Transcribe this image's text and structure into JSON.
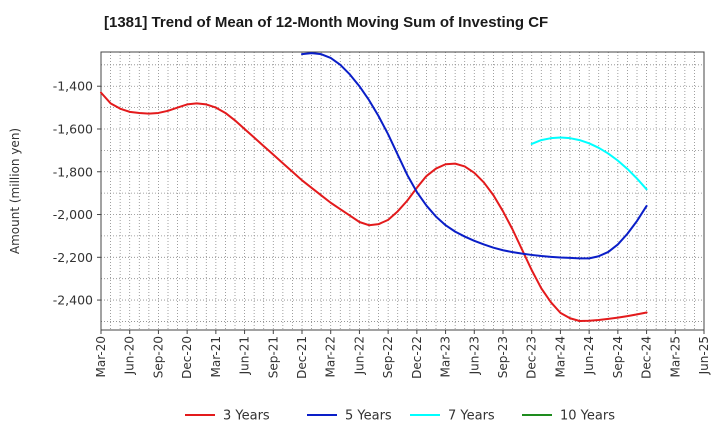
{
  "chart_data": {
    "type": "line",
    "title": "[1381]  Trend of Mean of 12-Month Moving Sum of Investing CF",
    "xlabel": "",
    "ylabel": "Amount (million yen)",
    "ylim": [
      -2540,
      -1240
    ],
    "yticks": [
      -1400,
      -1600,
      -1800,
      -2000,
      -2200,
      -2400
    ],
    "yticklabels": [
      "-1,400",
      "-1,600",
      "-1,800",
      "-2,000",
      "-2,200",
      "-2,400"
    ],
    "grid": true,
    "legend_position": "bottom",
    "x": [
      "Mar-20",
      "Jun-20",
      "Sep-20",
      "Dec-20",
      "Mar-21",
      "Jun-21",
      "Sep-21",
      "Dec-21",
      "Mar-22",
      "Jun-22",
      "Sep-22",
      "Dec-22",
      "Mar-23",
      "Jun-23",
      "Sep-23",
      "Dec-23",
      "Mar-24",
      "Jun-24",
      "Sep-24",
      "Dec-24",
      "Mar-25",
      "Jun-25"
    ],
    "series": [
      {
        "name": "3 Years",
        "color": "#e31a1c",
        "x": [
          "Mar-20",
          "Apr-20",
          "May-20",
          "Jun-20",
          "Jul-20",
          "Aug-20",
          "Sep-20",
          "Oct-20",
          "Nov-20",
          "Dec-20",
          "Jan-21",
          "Feb-21",
          "Mar-21",
          "Apr-21",
          "May-21",
          "Jun-21",
          "Jul-21",
          "Aug-21",
          "Sep-21",
          "Oct-21",
          "Nov-21",
          "Dec-21",
          "Jan-22",
          "Feb-22",
          "Mar-22",
          "Apr-22",
          "May-22",
          "Jun-22",
          "Jul-22",
          "Aug-22",
          "Sep-22",
          "Oct-22",
          "Nov-22",
          "Dec-22",
          "Jan-23",
          "Feb-23",
          "Mar-23",
          "Apr-23",
          "May-23",
          "Jun-23",
          "Jul-23",
          "Aug-23",
          "Sep-23",
          "Oct-23",
          "Nov-23",
          "Dec-23",
          "Jan-24",
          "Feb-24",
          "Mar-24",
          "Apr-24",
          "May-24",
          "Jun-24",
          "Jul-24",
          "Aug-24",
          "Sep-24",
          "Oct-24",
          "Nov-24",
          "Dec-24"
        ],
        "values": [
          -1430,
          -1480,
          -1505,
          -1520,
          -1525,
          -1528,
          -1525,
          -1515,
          -1500,
          -1485,
          -1480,
          -1485,
          -1500,
          -1525,
          -1560,
          -1600,
          -1640,
          -1680,
          -1720,
          -1760,
          -1800,
          -1840,
          -1875,
          -1910,
          -1945,
          -1975,
          -2005,
          -2035,
          -2050,
          -2045,
          -2025,
          -1985,
          -1935,
          -1875,
          -1820,
          -1785,
          -1765,
          -1762,
          -1775,
          -1805,
          -1850,
          -1910,
          -1985,
          -2070,
          -2165,
          -2260,
          -2345,
          -2410,
          -2460,
          -2485,
          -2498,
          -2497,
          -2493,
          -2488,
          -2482,
          -2475,
          -2467,
          -2458
        ]
      },
      {
        "name": "5 Years",
        "color": "#0a1ec8",
        "x": [
          "Dec-21",
          "Jan-22",
          "Feb-22",
          "Mar-22",
          "Apr-22",
          "May-22",
          "Jun-22",
          "Jul-22",
          "Aug-22",
          "Sep-22",
          "Oct-22",
          "Nov-22",
          "Dec-22",
          "Jan-23",
          "Feb-23",
          "Mar-23",
          "Apr-23",
          "May-23",
          "Jun-23",
          "Jul-23",
          "Aug-23",
          "Sep-23",
          "Oct-23",
          "Nov-23",
          "Dec-23",
          "Jan-24",
          "Feb-24",
          "Mar-24",
          "Apr-24",
          "May-24",
          "Jun-24",
          "Jul-24",
          "Aug-24",
          "Sep-24",
          "Oct-24",
          "Nov-24",
          "Dec-24"
        ],
        "values": [
          -1250,
          -1245,
          -1250,
          -1268,
          -1300,
          -1345,
          -1400,
          -1465,
          -1540,
          -1625,
          -1720,
          -1815,
          -1895,
          -1958,
          -2010,
          -2050,
          -2080,
          -2103,
          -2123,
          -2140,
          -2155,
          -2167,
          -2176,
          -2183,
          -2189,
          -2194,
          -2198,
          -2201,
          -2203,
          -2205,
          -2205,
          -2195,
          -2175,
          -2140,
          -2090,
          -2030,
          -1960
        ]
      },
      {
        "name": "7 Years",
        "color": "#00ffff",
        "x": [
          "Dec-23",
          "Jan-24",
          "Feb-24",
          "Mar-24",
          "Apr-24",
          "May-24",
          "Jun-24",
          "Jul-24",
          "Aug-24",
          "Sep-24",
          "Oct-24",
          "Nov-24",
          "Dec-24"
        ],
        "values": [
          -1670,
          -1652,
          -1643,
          -1640,
          -1643,
          -1652,
          -1667,
          -1688,
          -1715,
          -1748,
          -1787,
          -1832,
          -1882
        ]
      },
      {
        "name": "10 Years",
        "color": "#1e8c1e",
        "x": [],
        "values": []
      }
    ]
  }
}
